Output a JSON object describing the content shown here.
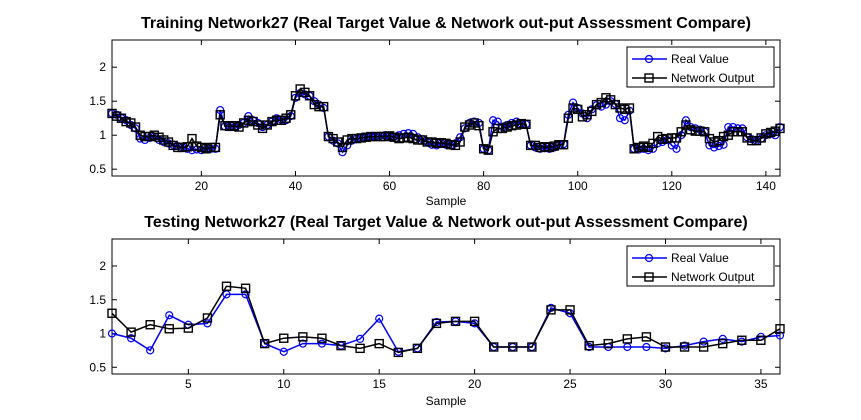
{
  "chart_data": [
    {
      "type": "line",
      "title": "Training Network27 (Real Target Value & Network out-put Assessment Compare)",
      "xlabel": "Sample",
      "ylabel": "",
      "xlim": [
        1,
        143
      ],
      "ylim": [
        0.4,
        2.4
      ],
      "xticks": [
        20,
        40,
        60,
        80,
        100,
        120,
        140
      ],
      "yticks": [
        0.5,
        1,
        1.5,
        2
      ],
      "ytick_labels": [
        "0.5",
        "1",
        "1.5",
        "2"
      ],
      "grid": false,
      "legend_position": "top-right",
      "x": [
        1,
        2,
        3,
        4,
        5,
        6,
        7,
        8,
        9,
        10,
        11,
        12,
        13,
        14,
        15,
        16,
        17,
        18,
        19,
        20,
        21,
        22,
        23,
        24,
        25,
        26,
        27,
        28,
        29,
        30,
        31,
        32,
        33,
        34,
        35,
        36,
        37,
        38,
        39,
        40,
        41,
        42,
        43,
        44,
        45,
        46,
        47,
        48,
        49,
        50,
        51,
        52,
        53,
        54,
        55,
        56,
        57,
        58,
        59,
        60,
        61,
        62,
        63,
        64,
        65,
        66,
        67,
        68,
        69,
        70,
        71,
        72,
        73,
        74,
        75,
        76,
        77,
        78,
        79,
        80,
        81,
        82,
        83,
        84,
        85,
        86,
        87,
        88,
        89,
        90,
        91,
        92,
        93,
        94,
        95,
        96,
        97,
        98,
        99,
        100,
        101,
        102,
        103,
        104,
        105,
        106,
        107,
        108,
        109,
        110,
        111,
        112,
        113,
        114,
        115,
        116,
        117,
        118,
        119,
        120,
        121,
        122,
        123,
        124,
        125,
        126,
        127,
        128,
        129,
        130,
        131,
        132,
        133,
        134,
        135,
        136,
        137,
        138,
        139,
        140,
        141,
        142,
        143
      ],
      "series": [
        {
          "name": "Real Value",
          "color": "#0000ff",
          "marker": "circle",
          "values": [
            1.32,
            1.3,
            1.25,
            1.22,
            1.15,
            1.1,
            0.95,
            0.93,
            0.96,
            0.98,
            0.93,
            0.9,
            0.88,
            0.86,
            0.84,
            0.82,
            0.8,
            0.78,
            0.79,
            0.78,
            0.79,
            0.8,
            0.8,
            1.37,
            1.13,
            1.12,
            1.12,
            1.15,
            1.18,
            1.28,
            1.22,
            1.18,
            1.12,
            1.15,
            1.2,
            1.25,
            1.23,
            1.22,
            1.28,
            1.55,
            1.62,
            1.6,
            1.58,
            1.5,
            1.45,
            1.4,
            0.98,
            0.92,
            0.88,
            0.75,
            0.85,
            0.92,
            0.95,
            0.96,
            0.97,
            0.98,
            0.98,
            0.99,
            1.0,
            0.99,
            0.98,
            1.0,
            1.02,
            1.03,
            1.02,
            0.97,
            0.94,
            0.9,
            0.86,
            0.85,
            0.88,
            0.86,
            0.85,
            0.88,
            0.97,
            1.1,
            1.18,
            1.2,
            1.18,
            0.8,
            0.78,
            1.22,
            1.2,
            1.12,
            1.15,
            1.18,
            1.2,
            1.17,
            1.16,
            0.85,
            0.82,
            0.8,
            0.81,
            0.8,
            0.82,
            0.85,
            0.87,
            1.3,
            1.48,
            1.4,
            1.32,
            1.25,
            1.38,
            1.44,
            1.42,
            1.45,
            1.5,
            1.46,
            1.25,
            1.22,
            1.36,
            0.8,
            0.79,
            0.8,
            0.78,
            0.8,
            0.88,
            0.9,
            0.93,
            0.85,
            0.8,
            1.0,
            1.22,
            1.12,
            1.1,
            1.08,
            1.05,
            0.85,
            0.82,
            0.84,
            0.86,
            1.12,
            1.12,
            1.1,
            1.1,
            0.97,
            0.94,
            0.92,
            0.95,
            1.0,
            1.02,
            1.0,
            1.12
          ]
        },
        {
          "name": "Network Output",
          "color": "#000000",
          "marker": "square",
          "values": [
            1.32,
            1.28,
            1.25,
            1.2,
            1.18,
            1.12,
            1.0,
            0.98,
            0.98,
            1.0,
            0.97,
            0.93,
            0.9,
            0.85,
            0.82,
            0.82,
            0.83,
            0.95,
            0.84,
            0.82,
            0.8,
            0.82,
            0.82,
            1.3,
            1.14,
            1.13,
            1.14,
            1.12,
            1.18,
            1.22,
            1.2,
            1.15,
            1.1,
            1.15,
            1.2,
            1.22,
            1.22,
            1.25,
            1.3,
            1.58,
            1.68,
            1.63,
            1.58,
            1.45,
            1.42,
            1.42,
            0.98,
            0.95,
            0.9,
            0.82,
            0.93,
            0.95,
            0.95,
            0.96,
            0.97,
            0.98,
            0.98,
            0.98,
            0.98,
            0.99,
            0.97,
            0.95,
            0.96,
            0.97,
            0.95,
            0.93,
            0.93,
            0.9,
            0.9,
            0.88,
            0.89,
            0.88,
            0.86,
            0.85,
            0.9,
            1.12,
            1.15,
            1.18,
            1.14,
            0.8,
            0.78,
            1.05,
            1.1,
            1.1,
            1.12,
            1.14,
            1.15,
            1.17,
            1.16,
            0.85,
            0.85,
            0.82,
            0.83,
            0.82,
            0.84,
            0.86,
            0.86,
            1.25,
            1.4,
            1.38,
            1.27,
            1.3,
            1.35,
            1.45,
            1.48,
            1.55,
            1.52,
            1.45,
            1.4,
            1.38,
            1.4,
            0.8,
            0.82,
            0.84,
            0.82,
            0.88,
            0.98,
            0.94,
            0.95,
            0.96,
            0.96,
            1.05,
            1.15,
            1.08,
            1.06,
            1.06,
            1.05,
            0.95,
            0.9,
            0.92,
            0.98,
            1.0,
            1.05,
            1.05,
            1.05,
            0.96,
            0.92,
            0.92,
            0.96,
            1.02,
            1.04,
            1.06,
            1.1
          ]
        }
      ]
    },
    {
      "type": "line",
      "title": "Testing Network27 (Real Target Value & Network out-put Assessment Compare)",
      "xlabel": "Sample",
      "ylabel": "",
      "xlim": [
        1,
        36
      ],
      "ylim": [
        0.4,
        2.4
      ],
      "xticks": [
        5,
        10,
        15,
        20,
        25,
        30,
        35
      ],
      "yticks": [
        0.5,
        1,
        1.5,
        2
      ],
      "ytick_labels": [
        "0.5",
        "1",
        "1.5",
        "2"
      ],
      "grid": false,
      "legend_position": "top-right",
      "x": [
        1,
        2,
        3,
        4,
        5,
        6,
        7,
        8,
        9,
        10,
        11,
        12,
        13,
        14,
        15,
        16,
        17,
        18,
        19,
        20,
        21,
        22,
        23,
        24,
        25,
        26,
        27,
        28,
        29,
        30,
        31,
        32,
        33,
        34,
        35,
        36
      ],
      "series": [
        {
          "name": "Real Value",
          "color": "#0000ff",
          "marker": "circle",
          "values": [
            1.0,
            0.93,
            0.75,
            1.27,
            1.13,
            1.15,
            1.58,
            1.58,
            0.85,
            0.73,
            0.85,
            0.85,
            0.82,
            0.92,
            1.22,
            0.73,
            0.78,
            1.17,
            1.18,
            1.15,
            0.8,
            0.8,
            0.8,
            1.38,
            1.3,
            0.8,
            0.8,
            0.8,
            0.8,
            0.78,
            0.82,
            0.88,
            0.92,
            0.88,
            0.95,
            0.97
          ]
        },
        {
          "name": "Network Output",
          "color": "#000000",
          "marker": "square",
          "values": [
            1.3,
            1.02,
            1.13,
            1.07,
            1.08,
            1.23,
            1.7,
            1.67,
            0.85,
            0.93,
            0.95,
            0.93,
            0.82,
            0.78,
            0.85,
            0.72,
            0.78,
            1.15,
            1.18,
            1.18,
            0.8,
            0.8,
            0.8,
            1.35,
            1.35,
            0.82,
            0.85,
            0.92,
            0.95,
            0.8,
            0.8,
            0.8,
            0.85,
            0.9,
            0.9,
            1.07
          ]
        }
      ]
    }
  ]
}
